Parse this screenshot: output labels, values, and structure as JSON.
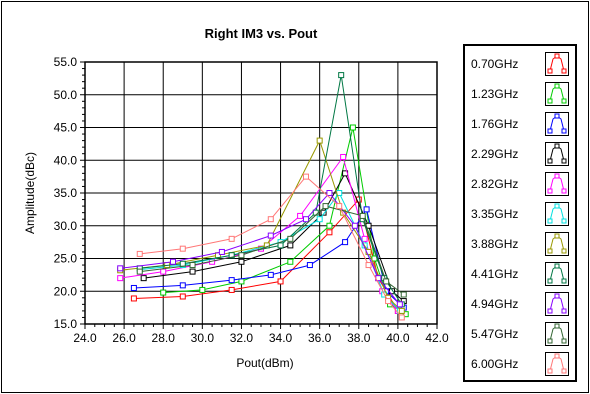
{
  "chart_data": {
    "type": "line",
    "title": "Right IM3 vs. Pout",
    "xlabel": "Pout(dBm)",
    "ylabel": "Amplitude(dBc)",
    "xlim": [
      24.0,
      42.0
    ],
    "ylim": [
      15.0,
      55.0
    ],
    "xticks": [
      "24.0",
      "26.0",
      "28.0",
      "30.0",
      "32.0",
      "34.0",
      "36.0",
      "38.0",
      "40.0",
      "42.0"
    ],
    "yticks": [
      "15.0",
      "20.0",
      "25.0",
      "30.0",
      "35.0",
      "40.0",
      "45.0",
      "50.0",
      "55.0"
    ],
    "grid": true,
    "legend_position": "right",
    "series": [
      {
        "name": "0.70GHz",
        "color": "#ff0000",
        "x": [
          26.5,
          29.0,
          31.5,
          34.0,
          36.5,
          38.0,
          39.0,
          40.0
        ],
        "y": [
          18.9,
          19.2,
          20.2,
          21.5,
          29.0,
          34.0,
          22.0,
          17.0
        ]
      },
      {
        "name": "1.23GHz",
        "color": "#00cc00",
        "x": [
          28.0,
          30.0,
          32.0,
          34.5,
          36.5,
          37.7,
          38.8,
          39.6,
          40.4
        ],
        "y": [
          19.8,
          20.2,
          21.5,
          24.5,
          30.0,
          45.0,
          25.0,
          18.0,
          16.5
        ]
      },
      {
        "name": "1.76GHz",
        "color": "#0000ff",
        "x": [
          26.5,
          29.0,
          31.5,
          33.5,
          35.5,
          37.3,
          38.4,
          39.4,
          40.3
        ],
        "y": [
          20.5,
          20.9,
          21.7,
          22.5,
          24.0,
          27.5,
          32.5,
          20.0,
          17.5
        ]
      },
      {
        "name": "2.29GHz",
        "color": "#000000",
        "x": [
          27.0,
          29.5,
          32.0,
          34.5,
          36.2,
          37.3,
          38.5,
          39.7,
          40.3
        ],
        "y": [
          22.0,
          23.0,
          24.5,
          27.0,
          32.0,
          38.0,
          30.0,
          20.0,
          18.5
        ]
      },
      {
        "name": "2.82GHz",
        "color": "#ff00ff",
        "x": [
          25.8,
          28.0,
          30.5,
          33.0,
          35.0,
          37.2,
          38.3,
          39.2,
          40.0
        ],
        "y": [
          22.0,
          23.0,
          24.5,
          26.5,
          31.5,
          40.5,
          28.0,
          20.0,
          17.0
        ]
      },
      {
        "name": "3.35GHz",
        "color": "#00e0e0",
        "x": [
          26.8,
          29.0,
          31.5,
          34.0,
          36.0,
          37.0,
          38.3,
          39.3,
          40.1
        ],
        "y": [
          23.3,
          24.0,
          25.5,
          27.5,
          31.0,
          35.0,
          27.0,
          19.5,
          17.0
        ]
      },
      {
        "name": "3.88GHz",
        "color": "#999900",
        "x": [
          25.8,
          28.2,
          30.8,
          33.3,
          36.0,
          37.2,
          38.5,
          39.5,
          40.2
        ],
        "y": [
          23.2,
          24.0,
          25.5,
          27.0,
          43.0,
          32.0,
          26.0,
          19.0,
          17.0
        ]
      },
      {
        "name": "4.41GHz",
        "color": "#007744",
        "x": [
          26.8,
          29.0,
          31.5,
          34.0,
          35.8,
          37.1,
          38.2,
          39.3,
          40.2
        ],
        "y": [
          23.5,
          24.2,
          25.5,
          27.0,
          32.0,
          53.0,
          31.0,
          22.0,
          18.0
        ]
      },
      {
        "name": "4.94GHz",
        "color": "#8800ff",
        "x": [
          25.8,
          28.5,
          31.0,
          33.5,
          35.3,
          36.5,
          37.8,
          39.0,
          40.1
        ],
        "y": [
          23.5,
          24.5,
          26.0,
          28.5,
          31.0,
          35.0,
          30.0,
          22.0,
          18.0
        ]
      },
      {
        "name": "5.47GHz",
        "color": "#336633",
        "x": [
          26.8,
          29.5,
          32.0,
          34.5,
          36.3,
          38.2,
          39.4,
          40.3
        ],
        "y": [
          23.0,
          24.0,
          25.5,
          28.0,
          33.0,
          31.5,
          21.5,
          19.5
        ]
      },
      {
        "name": "6.00GHz",
        "color": "#ff7777",
        "x": [
          26.8,
          29.0,
          31.5,
          33.5,
          35.3,
          37.0,
          38.5,
          39.5,
          40.2
        ],
        "y": [
          25.7,
          26.5,
          28.0,
          31.0,
          37.5,
          33.0,
          24.0,
          18.5,
          16.0
        ]
      }
    ]
  }
}
